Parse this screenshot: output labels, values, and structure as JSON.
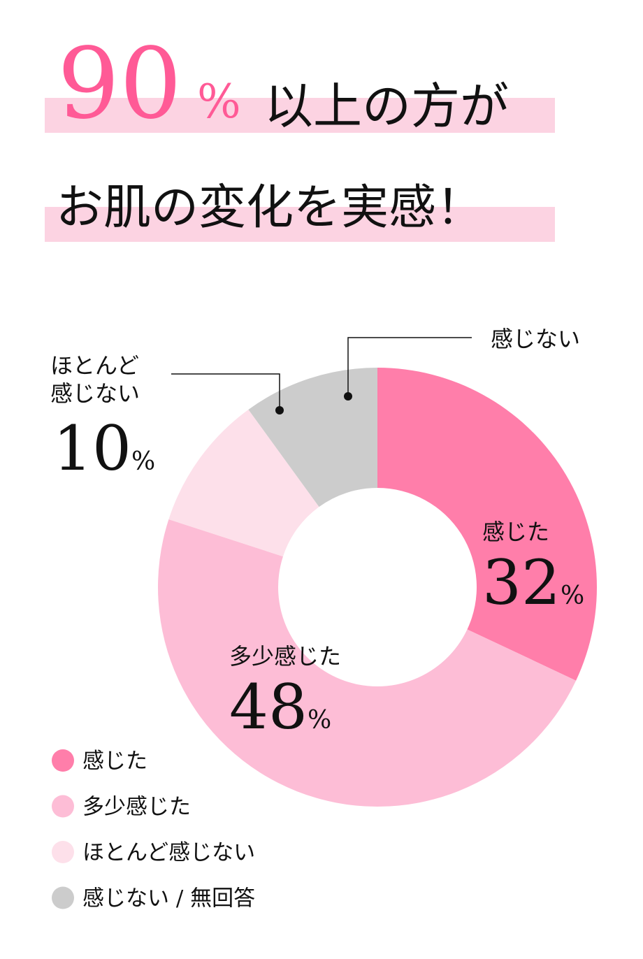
{
  "chart_data": {
    "type": "donut",
    "headline": {
      "number": "90",
      "unit": "%",
      "line1": "以上の方が",
      "line2": "お肌の変化を実感！"
    },
    "categories": [
      "感じた",
      "多少感じた",
      "ほとんど感じない",
      "感じない / 無回答"
    ],
    "slice_labels": [
      [
        "感じた"
      ],
      [
        "多少感じた"
      ],
      [
        "ほとんど",
        "感じない"
      ],
      [
        "感じない"
      ]
    ],
    "values": [
      32,
      48,
      10,
      10
    ],
    "unit": "%",
    "colors": [
      "#ff7eaa",
      "#fdbdd6",
      "#fde0ea",
      "#cccccc"
    ]
  }
}
